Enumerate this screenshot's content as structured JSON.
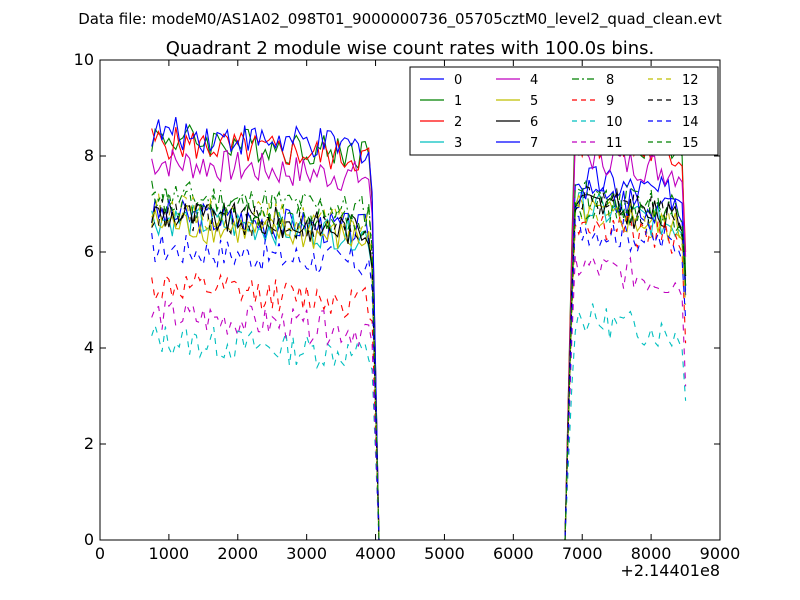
{
  "figure": {
    "suptitle": "Data file: modeM0/AS1A02_098T01_9000000736_05705cztM0_level2_quad_clean.evt"
  },
  "chart_data": {
    "type": "line",
    "title": "Quadrant 2 module wise count rates with 100.0s bins.",
    "xlabel": "",
    "ylabel": "",
    "xlim": [
      0,
      9000
    ],
    "ylim": [
      0,
      10
    ],
    "x_offset_label": "+2.14401e8",
    "x_ticks": [
      0,
      1000,
      2000,
      3000,
      4000,
      5000,
      6000,
      7000,
      8000,
      9000
    ],
    "x_tick_labels": [
      "0",
      "1000",
      "2000",
      "3000",
      "4000",
      "5000",
      "6000",
      "7000",
      "8000",
      "9000"
    ],
    "y_ticks": [
      0,
      2,
      4,
      6,
      8,
      10
    ],
    "y_tick_labels": [
      "0",
      "2",
      "4",
      "6",
      "8",
      "10"
    ],
    "grid": false,
    "legend_position": "top-right",
    "legend_columns": 4,
    "x_segments": [
      {
        "start": 750,
        "end": 3950,
        "step": 50
      },
      {
        "start": 4050,
        "end": 6750,
        "step": 100
      },
      {
        "start": 6850,
        "end": 8500,
        "step": 50
      }
    ],
    "series": [
      {
        "name": "0",
        "color": "#0000ff",
        "dash": "solid",
        "level1": 6.8,
        "level2": 7.3,
        "end_value": 5.3
      },
      {
        "name": "1",
        "color": "#008000",
        "dash": "solid",
        "level1": 8.4,
        "level2": 8.3,
        "end_value": 5.5
      },
      {
        "name": "2",
        "color": "#ff0000",
        "dash": "solid",
        "level1": 8.3,
        "level2": 8.1,
        "end_value": 6.0
      },
      {
        "name": "3",
        "color": "#00bfbf",
        "dash": "solid",
        "level1": 6.7,
        "level2": 6.7,
        "end_value": 5.2
      },
      {
        "name": "4",
        "color": "#bf00bf",
        "dash": "solid",
        "level1": 7.9,
        "level2": 7.8,
        "end_value": 5.9
      },
      {
        "name": "5",
        "color": "#bfbf00",
        "dash": "solid",
        "level1": 6.6,
        "level2": 6.6,
        "end_value": 5.1
      },
      {
        "name": "6",
        "color": "#000000",
        "dash": "solid",
        "level1": 6.8,
        "level2": 6.8,
        "end_value": 5.3
      },
      {
        "name": "7",
        "color": "#0000ff",
        "dash": "solid",
        "level1": 8.5,
        "level2": 7.0,
        "end_value": 5.1
      },
      {
        "name": "8",
        "color": "#008000",
        "dash": "dashdot",
        "level1": 7.2,
        "level2": 7.0,
        "end_value": 5.3
      },
      {
        "name": "9",
        "color": "#ff0000",
        "dash": "dashed",
        "level1": 5.3,
        "level2": 6.4,
        "end_value": 4.1
      },
      {
        "name": "10",
        "color": "#00bfbf",
        "dash": "dashed",
        "level1": 4.2,
        "level2": 4.4,
        "end_value": 2.9
      },
      {
        "name": "11",
        "color": "#bf00bf",
        "dash": "dashed",
        "level1": 4.7,
        "level2": 5.5,
        "end_value": 3.2
      },
      {
        "name": "12",
        "color": "#bfbf00",
        "dash": "dashed",
        "level1": 6.9,
        "level2": 6.6,
        "end_value": 4.9
      },
      {
        "name": "13",
        "color": "#000000",
        "dash": "dashed",
        "level1": 6.8,
        "level2": 6.9,
        "end_value": 5.5
      },
      {
        "name": "14",
        "color": "#0000ff",
        "dash": "dashed",
        "level1": 6.1,
        "level2": 6.3,
        "end_value": 4.6
      },
      {
        "name": "15",
        "color": "#008000",
        "dash": "dashed",
        "level1": 7.0,
        "level2": 6.8,
        "end_value": 5.4
      }
    ]
  }
}
